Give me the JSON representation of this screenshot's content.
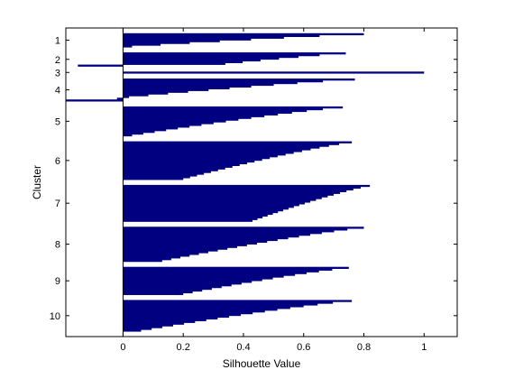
{
  "chart_data": {
    "type": "bar",
    "orientation": "horizontal",
    "xlabel": "Silhouette Value",
    "ylabel": "Cluster",
    "xlim": [
      -0.19,
      1.11
    ],
    "x_ticks": [
      "0",
      "0.2",
      "0.4",
      "0.6",
      "0.8",
      "1"
    ],
    "x_tick_values": [
      0,
      0.2,
      0.4,
      0.6,
      0.8,
      1
    ],
    "grid": false,
    "bar_color": "#000080",
    "clusters": [
      {
        "label": "1",
        "count": 8,
        "max": 0.8,
        "min": 0.03,
        "negatives": []
      },
      {
        "label": "2",
        "count": 7,
        "max": 0.74,
        "min": 0.34,
        "negatives": [
          -0.15
        ]
      },
      {
        "label": "3",
        "count": 1,
        "max": 1.0,
        "min": 1.0,
        "negatives": []
      },
      {
        "label": "4",
        "count": 11,
        "max": 0.77,
        "min": 0.02,
        "negatives": [
          -0.02,
          -0.19
        ]
      },
      {
        "label": "5",
        "count": 17,
        "max": 0.73,
        "min": 0.03,
        "negatives": []
      },
      {
        "label": "6",
        "count": 22,
        "max": 0.76,
        "min": 0.2,
        "negatives": []
      },
      {
        "label": "7",
        "count": 21,
        "max": 0.82,
        "min": 0.43,
        "negatives": []
      },
      {
        "label": "8",
        "count": 20,
        "max": 0.8,
        "min": 0.13,
        "negatives": []
      },
      {
        "label": "9",
        "count": 16,
        "max": 0.75,
        "min": 0.2,
        "negatives": []
      },
      {
        "label": "10",
        "count": 18,
        "max": 0.76,
        "min": 0.06,
        "negatives": []
      }
    ]
  }
}
